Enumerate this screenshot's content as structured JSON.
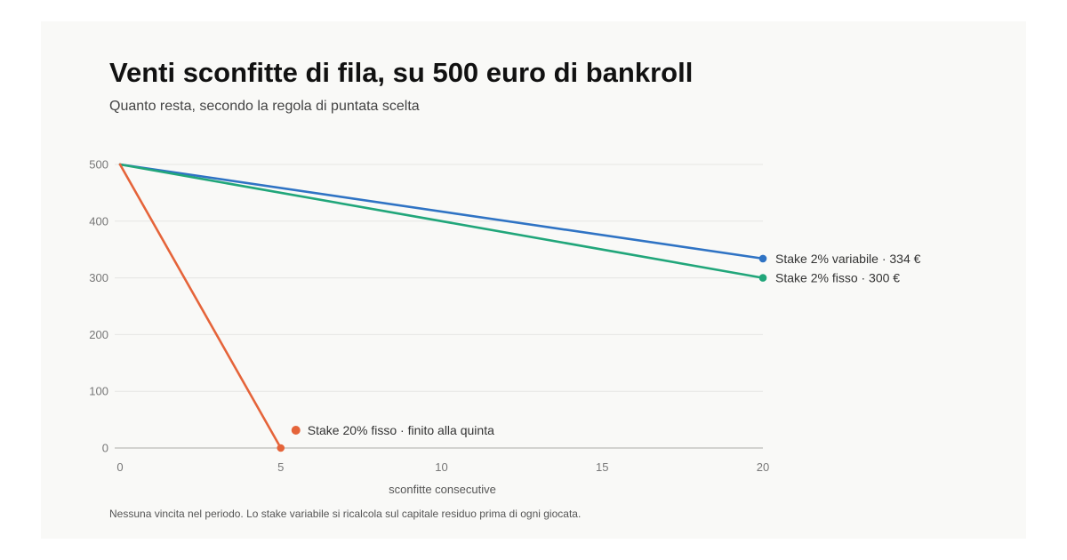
{
  "colors": {
    "background": "#f9f9f7",
    "grid": "#e6e6e3",
    "baseline": "#bdbdb8",
    "variable_2": "#2f73c4",
    "fixed_2": "#21a67a",
    "fixed_20": "#e5643a"
  },
  "chart_data": {
    "type": "line",
    "title": "Venti sconfitte di fila, su 500 euro di bankroll",
    "subtitle": "Quanto resta, secondo la regola di puntata scelta",
    "xlabel": "sconfitte consecutive",
    "ylabel": "",
    "xlim": [
      0,
      20
    ],
    "ylim": [
      0,
      500
    ],
    "x_ticks": [
      0,
      5,
      10,
      15,
      20
    ],
    "y_ticks": [
      0,
      100,
      200,
      300,
      400,
      500
    ],
    "grid": true,
    "legend": "end-of-line labels",
    "series": [
      {
        "key": "variable_2",
        "label": "Stake 2% variabile · 334 €",
        "x": [
          0,
          20
        ],
        "y": [
          500,
          334
        ]
      },
      {
        "key": "fixed_2",
        "label": "Stake 2% fisso · 300 €",
        "x": [
          0,
          20
        ],
        "y": [
          500,
          300
        ]
      },
      {
        "key": "fixed_20",
        "label": "Stake 20% fisso · finito alla quinta",
        "x": [
          0,
          5
        ],
        "y": [
          500,
          0
        ]
      }
    ],
    "note": "Nessuna vincita nel periodo. Lo stake variabile si ricalcola sul capitale residuo prima di ogni giocata."
  }
}
